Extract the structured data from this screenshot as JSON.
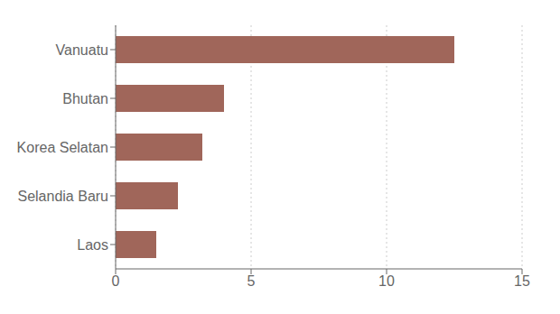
{
  "chart_data": {
    "type": "bar",
    "orientation": "horizontal",
    "categories": [
      "Laos",
      "Selandia Baru",
      "Korea Selatan",
      "Bhutan",
      "Vanuatu"
    ],
    "values": [
      1.5,
      2.3,
      3.2,
      4.0,
      12.5
    ],
    "color": "#a0665a",
    "xlim": [
      0,
      15
    ],
    "xticks": [
      0,
      5,
      10,
      15
    ],
    "grid": true
  }
}
